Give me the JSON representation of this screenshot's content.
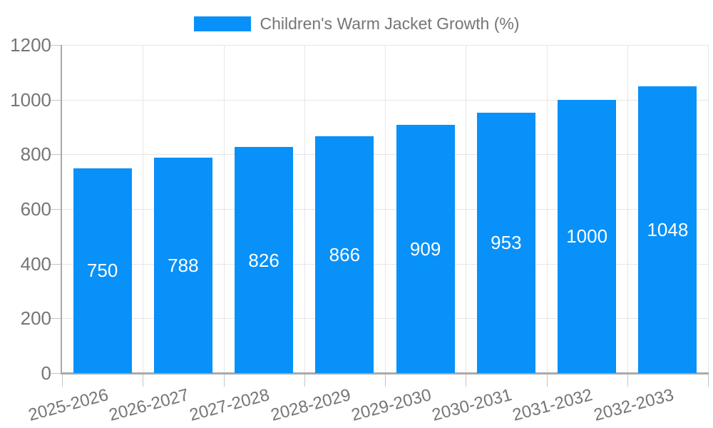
{
  "legend": {
    "label": "Children's Warm Jacket Growth (%)"
  },
  "chart_data": {
    "type": "bar",
    "title": "Children's Warm Jacket Growth (%)",
    "categories": [
      "2025-2026",
      "2026-2027",
      "2027-2028",
      "2028-2029",
      "2029-2030",
      "2030-2031",
      "2031-2032",
      "2032-2033"
    ],
    "values": [
      750,
      788,
      826,
      866,
      909,
      953,
      1000,
      1048
    ],
    "xlabel": "",
    "ylabel": "",
    "ylim": [
      0,
      1200
    ],
    "yticks": [
      0,
      200,
      400,
      600,
      800,
      1000,
      1200
    ],
    "grid": true,
    "legend_position": "top-center",
    "bar_labels_inside": true,
    "colors": {
      "bar": "#0891f8",
      "bar_label": "#ffffff",
      "axis_line": "#a9a9a9",
      "grid_line": "#e6e6e6",
      "tick_mark": "#c4c4c4",
      "tick_text": "#757575",
      "background": "#ffffff"
    }
  }
}
